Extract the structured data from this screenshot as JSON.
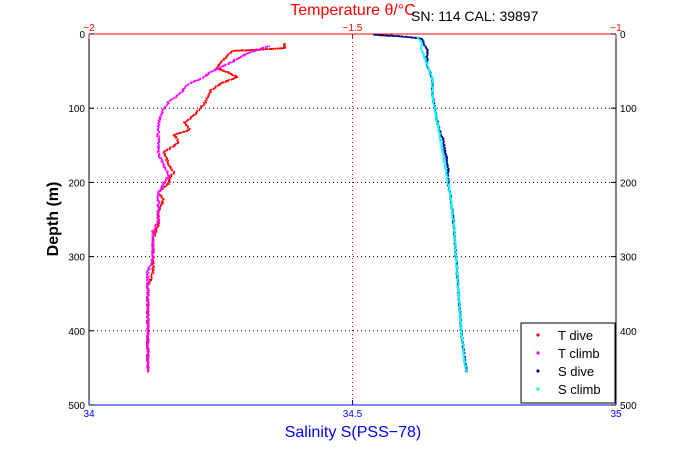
{
  "chart_data": {
    "type": "scatter",
    "header_note": "SN: 114  CAL: 39897",
    "y_axis": {
      "label": "Depth (m)",
      "lim": [
        0,
        500
      ],
      "reversed": true,
      "ticks": [
        0,
        100,
        200,
        300,
        400,
        500
      ],
      "tick_labels": [
        "0",
        "100",
        "200",
        "300",
        "400",
        "500"
      ]
    },
    "x_top": {
      "label": "Temperature θ/°C",
      "lim": [
        -2,
        -1
      ],
      "ticks": [
        -2,
        -1.5,
        -1
      ],
      "tick_labels": [
        "−2",
        "−1.5",
        "−1"
      ],
      "color": "#ff0000"
    },
    "x_bottom": {
      "label": "Salinity S(PSS−78)",
      "lim": [
        34,
        35
      ],
      "ticks": [
        34,
        34.5,
        35
      ],
      "tick_labels": [
        "34",
        "34.5",
        "35"
      ],
      "color": "#0000ff"
    },
    "grid": "dotted, at depths 100/200/300/400 and at x = 34.5 / −1.5",
    "legend": {
      "position": "bottom-right"
    },
    "series": [
      {
        "name": "T dive",
        "axis": "top",
        "color": "#ff0000",
        "marker": "dot",
        "x": [
          -1.63,
          -1.63,
          -1.73,
          -1.74,
          -1.75,
          -1.76,
          -1.74,
          -1.72,
          -1.75,
          -1.77,
          -1.78,
          -1.8,
          -1.82,
          -1.81,
          -1.84,
          -1.83,
          -1.86,
          -1.85,
          -1.84,
          -1.85,
          -1.85,
          -1.87,
          -1.86,
          -1.87,
          -1.87,
          -1.88,
          -1.88,
          -1.88,
          -1.89,
          -1.89,
          -1.89,
          -1.89,
          -1.89,
          -1.89
        ],
        "y": [
          12,
          18,
          22,
          30,
          35,
          45,
          50,
          57,
          65,
          75,
          90,
          108,
          118,
          128,
          135,
          145,
          158,
          175,
          185,
          195,
          200,
          212,
          222,
          238,
          255,
          275,
          300,
          320,
          340,
          360,
          380,
          400,
          425,
          455
        ]
      },
      {
        "name": "T climb",
        "axis": "top",
        "color": "#ff00ff",
        "marker": "dot",
        "x": [
          -1.66,
          -1.7,
          -1.74,
          -1.77,
          -1.79,
          -1.81,
          -1.82,
          -1.83,
          -1.85,
          -1.86,
          -1.87,
          -1.87,
          -1.87,
          -1.86,
          -1.85,
          -1.86,
          -1.87,
          -1.87,
          -1.87,
          -1.88,
          -1.88,
          -1.88,
          -1.89,
          -1.89,
          -1.89,
          -1.89,
          -1.89,
          -1.89
        ],
        "y": [
          15,
          25,
          40,
          50,
          60,
          65,
          72,
          80,
          90,
          100,
          120,
          140,
          160,
          175,
          190,
          200,
          215,
          230,
          250,
          265,
          280,
          300,
          320,
          340,
          360,
          400,
          430,
          455
        ]
      },
      {
        "name": "S dive",
        "axis": "bottom",
        "color": "#00008b",
        "marker": "dot",
        "x": [
          34.54,
          34.59,
          34.63,
          34.64,
          34.64,
          34.65,
          34.65,
          34.655,
          34.66,
          34.67,
          34.675,
          34.68,
          34.68,
          34.685,
          34.69,
          34.695,
          34.7,
          34.705,
          34.71,
          34.715
        ],
        "y": [
          0,
          2,
          5,
          20,
          40,
          60,
          80,
          100,
          120,
          140,
          160,
          180,
          200,
          220,
          250,
          300,
          350,
          400,
          430,
          455
        ]
      },
      {
        "name": "S climb",
        "axis": "bottom",
        "color": "#00ffff",
        "marker": "dot",
        "x": [
          34.62,
          34.63,
          34.63,
          34.64,
          34.65,
          34.65,
          34.655,
          34.66,
          34.665,
          34.67,
          34.675,
          34.68,
          34.685,
          34.69,
          34.695,
          34.7,
          34.705,
          34.71,
          34.715
        ],
        "y": [
          3,
          10,
          20,
          40,
          60,
          80,
          100,
          120,
          140,
          160,
          180,
          200,
          220,
          250,
          300,
          350,
          400,
          430,
          455
        ]
      }
    ]
  }
}
